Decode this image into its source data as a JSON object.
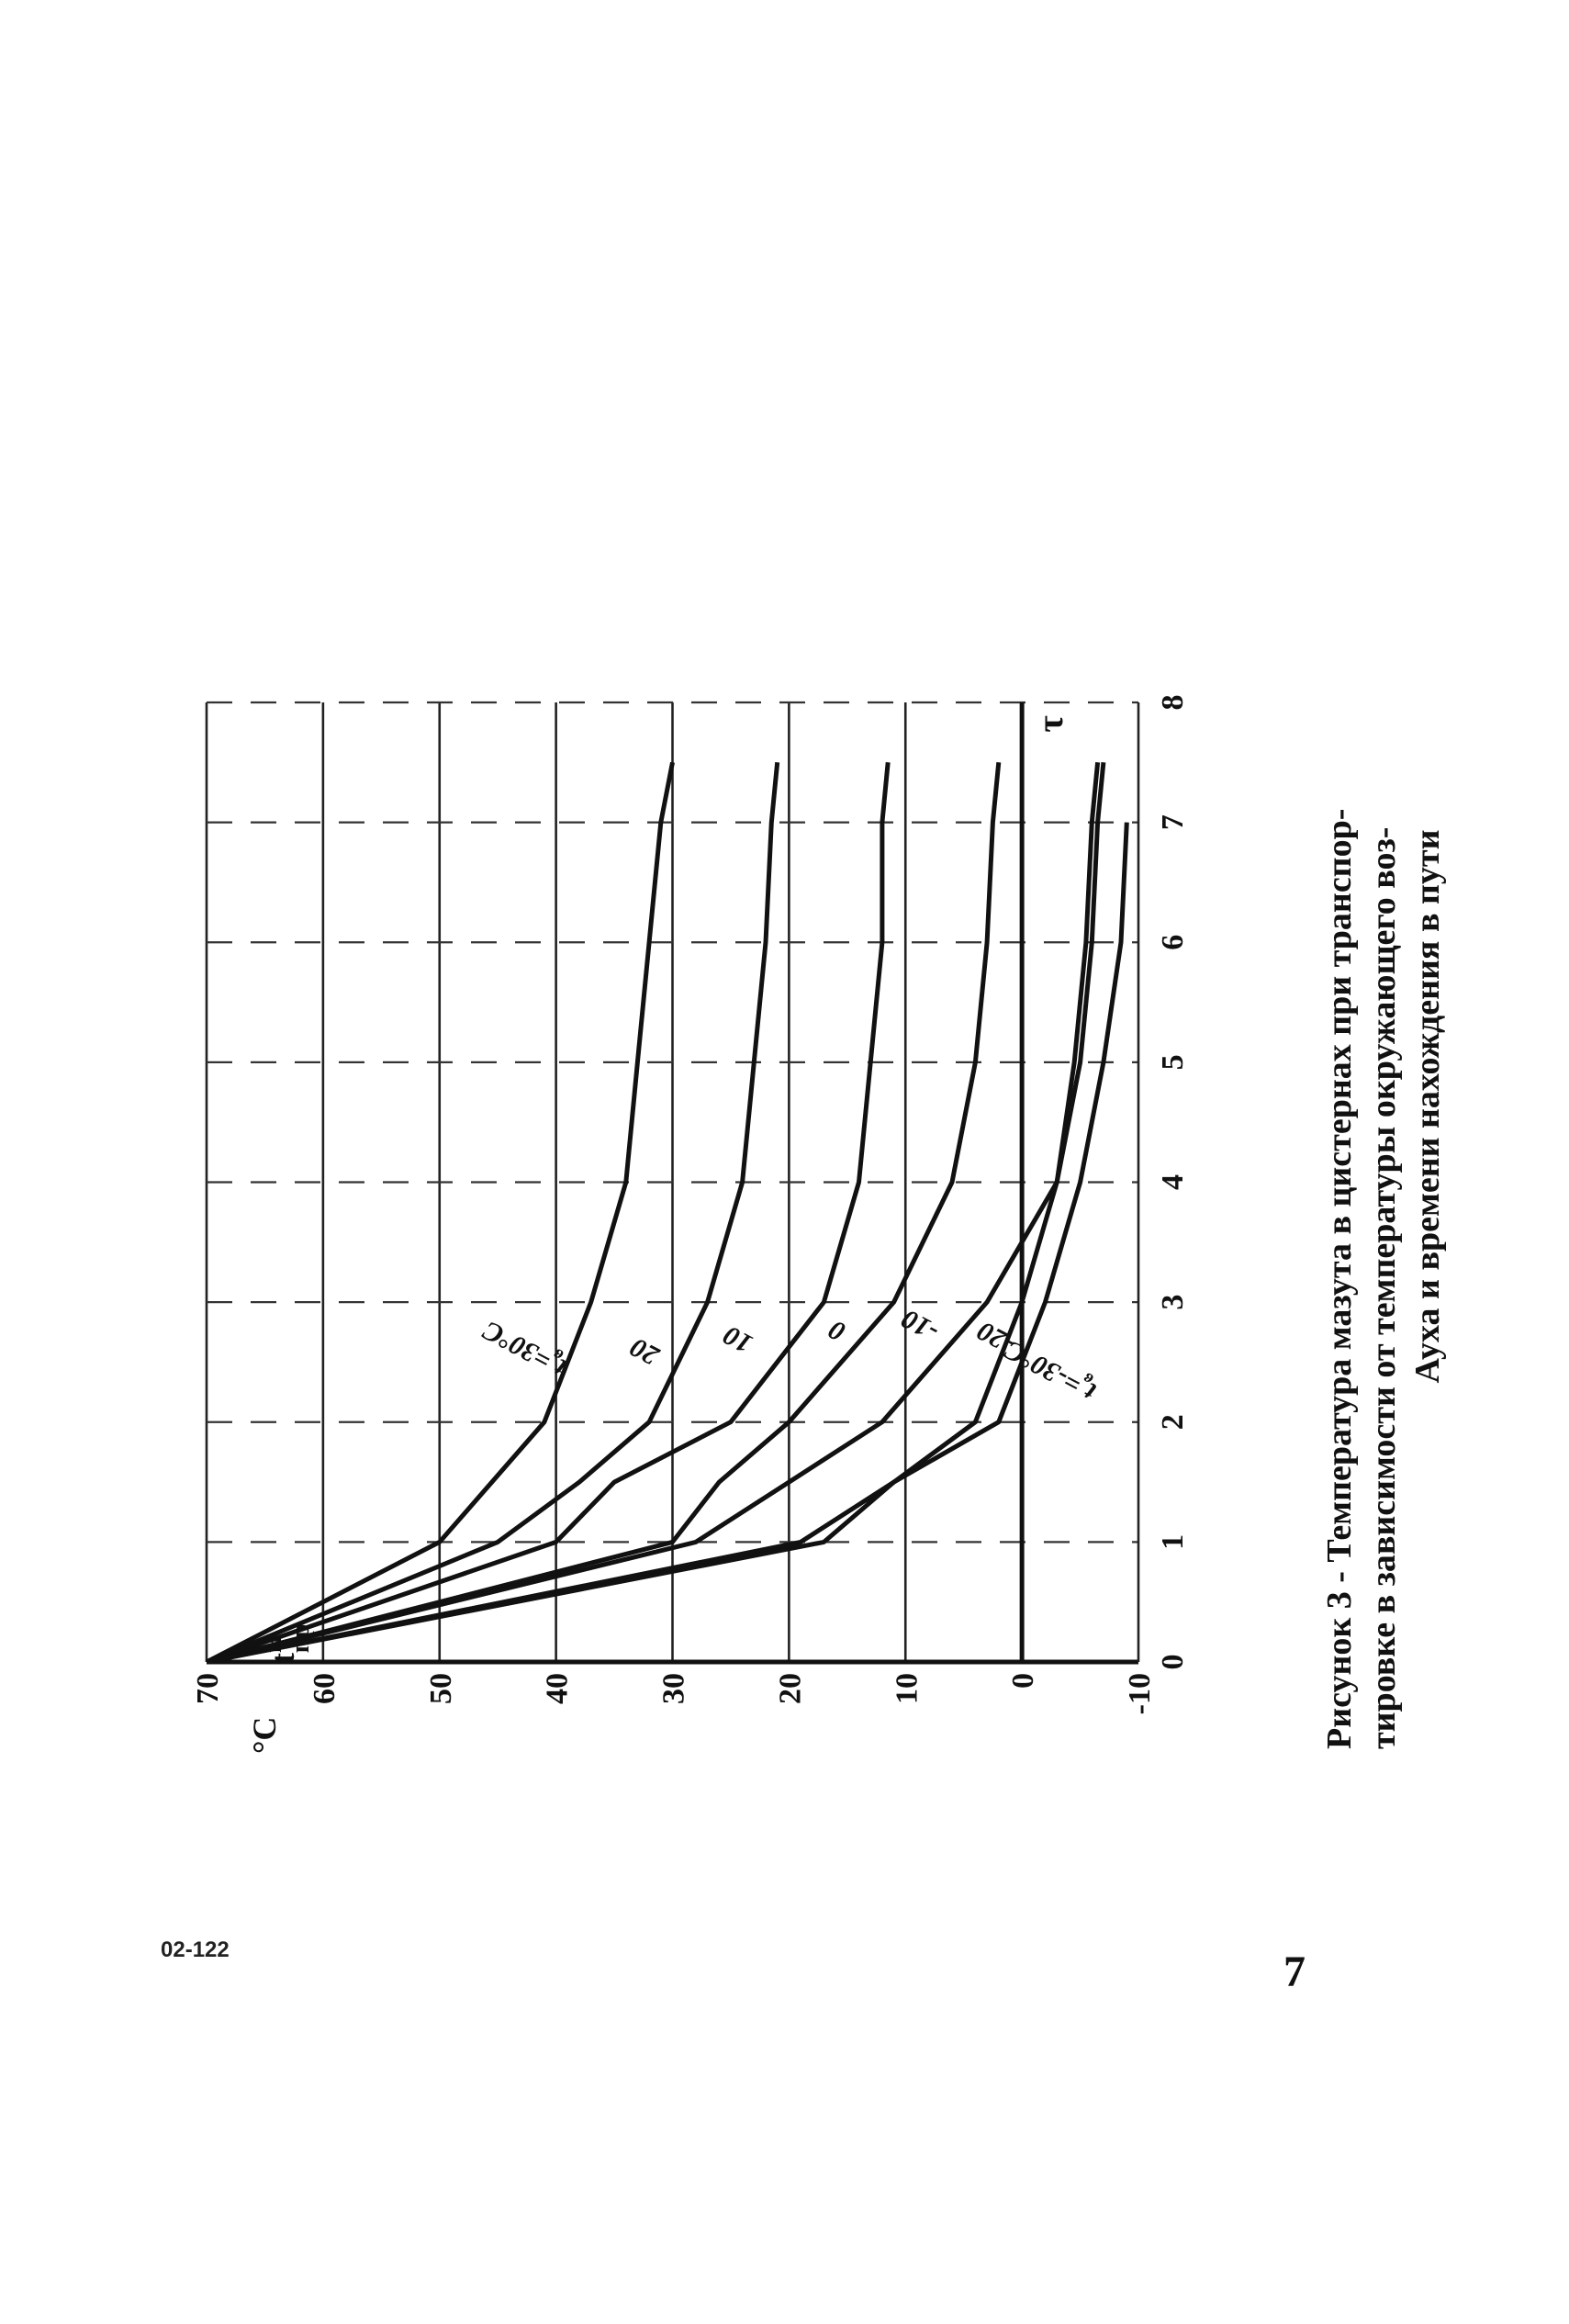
{
  "chart_data": {
    "type": "line",
    "y_unit": "°C",
    "y_symbol": "t",
    "y_symbol_sub": "пр",
    "y_symbol_sup": "м",
    "x_symbol": "τ",
    "xlim": [
      0,
      8
    ],
    "ylim": [
      -10,
      70
    ],
    "x_ticks": [
      "0",
      "1",
      "2",
      "3",
      "4",
      "5",
      "6",
      "7",
      "8"
    ],
    "y_ticks": [
      "-10",
      "0",
      "10",
      "20",
      "30",
      "40",
      "50",
      "60",
      "70"
    ],
    "grid": true,
    "series": [
      {
        "name": "tв=30°C",
        "label_main": "t",
        "label_sub": "в",
        "label_rest": "=30°C",
        "x": [
          0,
          1,
          2,
          3,
          4,
          5,
          6,
          7,
          7.5
        ],
        "y": [
          70,
          50,
          41,
          37,
          34,
          33,
          32,
          31,
          30
        ]
      },
      {
        "name": "20",
        "label_main": "20",
        "x": [
          0,
          1,
          1.5,
          2,
          3,
          4,
          5,
          6,
          7,
          7.5
        ],
        "y": [
          70,
          45,
          38,
          32,
          27,
          24,
          23,
          22,
          21.5,
          21
        ]
      },
      {
        "name": "10",
        "label_main": "10",
        "x": [
          0,
          1,
          1.5,
          2,
          3,
          4,
          5,
          6,
          7,
          7.5
        ],
        "y": [
          70,
          40,
          35,
          25,
          17,
          14,
          13,
          12,
          12,
          11.5
        ]
      },
      {
        "name": "0",
        "label_main": "0",
        "x": [
          0,
          1,
          1.5,
          2,
          3,
          4,
          5,
          6,
          7,
          7.5
        ],
        "y": [
          70,
          30,
          26,
          20,
          11,
          6,
          4,
          3,
          2.5,
          2
        ]
      },
      {
        "name": "-10",
        "label_main": "-10",
        "x": [
          0,
          1,
          1.5,
          2,
          3,
          4,
          5,
          6,
          7,
          7.5
        ],
        "y": [
          70,
          28,
          20,
          12,
          3,
          -3,
          -5,
          -6,
          -6.5,
          -7
        ]
      },
      {
        "name": "-20",
        "label_main": "-20",
        "x": [
          0,
          1,
          1.5,
          2,
          3,
          4,
          5,
          6,
          7,
          7.5
        ],
        "y": [
          70,
          19,
          11,
          4,
          0,
          -3,
          -4.5,
          -5.5,
          -6,
          -6.5
        ]
      },
      {
        "name": "tв=-30°C",
        "label_main": "t",
        "label_sub": "в",
        "label_rest": "=-30°C",
        "x": [
          0,
          1,
          1.5,
          2,
          3,
          4,
          5,
          6,
          7
        ],
        "y": [
          70,
          17,
          11,
          2,
          -2,
          -5,
          -7,
          -8.5,
          -9
        ]
      }
    ]
  },
  "caption": {
    "line1": "Рисунок 3 - Температура мазута в цистернах при транспор-",
    "line2": "тировке в зависимости от температуры окружающего воз-",
    "line3": "Ауха и времени нахождения в пути"
  },
  "doc_code": "02-122",
  "page_number": "7"
}
